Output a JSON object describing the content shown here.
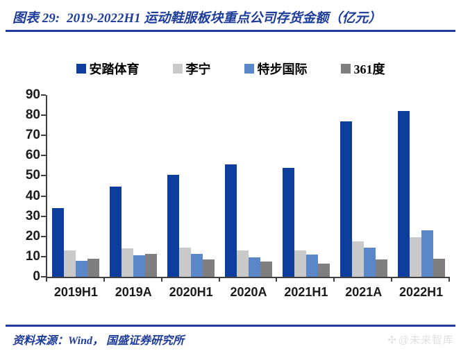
{
  "figure": {
    "label": "图表 29:",
    "title": "2019-2022H1 运动鞋服板块重点公司存货金额（亿元）"
  },
  "chart_data": {
    "type": "bar",
    "title": "2019-2022H1 运动鞋服板块重点公司存货金额（亿元）",
    "categories": [
      "2019H1",
      "2019A",
      "2020H1",
      "2020A",
      "2021H1",
      "2021A",
      "2022H1"
    ],
    "series": [
      {
        "key": "anta",
        "name": "安踏体育",
        "color": "#0E3D9E",
        "values": [
          34,
          44.5,
          50.5,
          55.5,
          54,
          77,
          82
        ]
      },
      {
        "key": "lining",
        "name": "李宁",
        "color": "#C9C9C9",
        "values": [
          13,
          14,
          14.5,
          13,
          13,
          17.5,
          19.5
        ]
      },
      {
        "key": "xtep",
        "name": "特步国际",
        "color": "#5B87C9",
        "values": [
          8,
          10.5,
          11.5,
          9.5,
          11,
          14.5,
          23
        ]
      },
      {
        "key": "361d",
        "name": "361度",
        "color": "#7F7F7F",
        "values": [
          9,
          11.5,
          8.5,
          7.5,
          6.5,
          8.5,
          9
        ]
      }
    ],
    "xlabel": "",
    "ylabel": "",
    "ylim": [
      0,
      90
    ],
    "yticks": [
      0,
      10,
      20,
      30,
      40,
      50,
      60,
      70,
      80,
      90
    ],
    "grid": false,
    "legend_position": "top",
    "axis_color": "#3F3F3F"
  },
  "footer": {
    "source": "资料来源：Wind， 国盛证券研究所",
    "watermark_icon": "✣",
    "watermark_text": "@未来智库"
  },
  "colors": {
    "accent_blue": "#1E3C99",
    "watermark_gray": "#E0E0E0"
  }
}
